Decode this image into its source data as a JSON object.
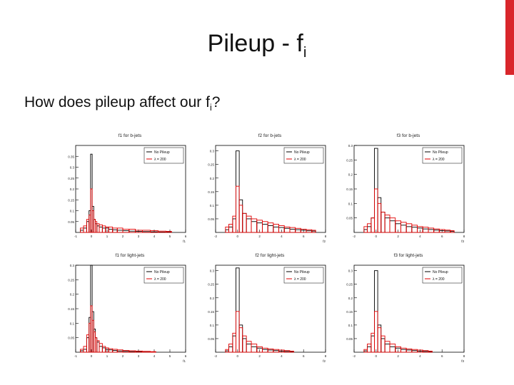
{
  "slide": {
    "title_main": "Pileup - f",
    "title_sub": "i",
    "question_main": "How does pileup affect our f",
    "question_sub": "i",
    "question_end": "?",
    "accent_color": "#d9262b"
  },
  "legend": {
    "no_pileup": "No Pileup",
    "pileup": "λ = 200"
  },
  "chart_data": [
    {
      "type": "histogram",
      "title": "f1 for b-jets",
      "xlabel": "f1",
      "xlim": [
        -1,
        6
      ],
      "ylim": [
        0,
        0.4
      ],
      "yticks": [
        "0.35",
        "0.3",
        "0.25",
        "0.2",
        "0.15",
        "0.1",
        "0.05"
      ],
      "ytick_values": [
        0.35,
        0.3,
        0.25,
        0.2,
        0.15,
        0.1,
        0.05
      ],
      "xticks": [
        "-1",
        "0",
        "1",
        "2",
        "3",
        "4",
        "5",
        "6"
      ],
      "series": [
        {
          "name": "No Pileup",
          "color": "#000000",
          "x": [
            -0.6,
            -0.4,
            -0.2,
            -0.1,
            0,
            0.1,
            0.2,
            0.3,
            0.4,
            0.6,
            0.8,
            1.0,
            1.2,
            1.5,
            1.8,
            2.2,
            2.6,
            3.0,
            3.5,
            4.0,
            4.5,
            5.0
          ],
          "values": [
            0.01,
            0.02,
            0.05,
            0.1,
            0.36,
            0.12,
            0.06,
            0.04,
            0.03,
            0.025,
            0.02,
            0.02,
            0.015,
            0.012,
            0.01,
            0.008,
            0.006,
            0.005,
            0.004,
            0.003,
            0.002,
            0.002
          ]
        },
        {
          "name": "λ = 200",
          "color": "#e00000",
          "x": [
            -0.6,
            -0.4,
            -0.2,
            -0.1,
            0,
            0.1,
            0.2,
            0.3,
            0.4,
            0.6,
            0.8,
            1.0,
            1.2,
            1.5,
            1.8,
            2.2,
            2.6,
            3.0,
            3.5,
            4.0,
            4.5,
            5.0
          ],
          "values": [
            0.02,
            0.03,
            0.06,
            0.08,
            0.2,
            0.1,
            0.06,
            0.05,
            0.04,
            0.035,
            0.03,
            0.025,
            0.025,
            0.02,
            0.02,
            0.015,
            0.015,
            0.01,
            0.01,
            0.008,
            0.006,
            0.005
          ]
        }
      ]
    },
    {
      "type": "histogram",
      "title": "f2 for b-jets",
      "xlabel": "f2",
      "xlim": [
        -2,
        8
      ],
      "ylim": [
        0,
        0.32
      ],
      "yticks": [
        "0.3",
        "0.25",
        "0.2",
        "0.15",
        "0.1",
        "0.05"
      ],
      "ytick_values": [
        0.3,
        0.25,
        0.2,
        0.15,
        0.1,
        0.05
      ],
      "xticks": [
        "-2",
        "0",
        "2",
        "4",
        "6",
        "8"
      ],
      "series": [
        {
          "name": "No Pileup",
          "color": "#000000",
          "x": [
            -1.0,
            -0.6,
            -0.3,
            0,
            0.3,
            0.6,
            1.0,
            1.5,
            2.0,
            2.5,
            3.0,
            3.5,
            4.0,
            4.5,
            5.0,
            5.5,
            6.0,
            6.5,
            7.0
          ],
          "values": [
            0.01,
            0.02,
            0.05,
            0.3,
            0.12,
            0.07,
            0.05,
            0.04,
            0.035,
            0.03,
            0.025,
            0.02,
            0.018,
            0.015,
            0.012,
            0.01,
            0.008,
            0.006,
            0.005
          ]
        },
        {
          "name": "λ = 200",
          "color": "#e00000",
          "x": [
            -1.0,
            -0.6,
            -0.3,
            0,
            0.3,
            0.6,
            1.0,
            1.5,
            2.0,
            2.5,
            3.0,
            3.5,
            4.0,
            4.5,
            5.0,
            5.5,
            6.0,
            6.5,
            7.0
          ],
          "values": [
            0.02,
            0.03,
            0.06,
            0.17,
            0.1,
            0.07,
            0.06,
            0.05,
            0.045,
            0.04,
            0.035,
            0.03,
            0.025,
            0.02,
            0.018,
            0.015,
            0.012,
            0.01,
            0.008
          ]
        }
      ]
    },
    {
      "type": "histogram",
      "title": "f3 for b-jets",
      "xlabel": "f3",
      "xlim": [
        -2,
        8
      ],
      "ylim": [
        0,
        0.3
      ],
      "yticks": [
        "0.3",
        "0.25",
        "0.2",
        "0.15",
        "0.1",
        "0.05"
      ],
      "ytick_values": [
        0.3,
        0.25,
        0.2,
        0.15,
        0.1,
        0.05
      ],
      "xticks": [
        "-2",
        "0",
        "2",
        "4",
        "6",
        "8"
      ],
      "series": [
        {
          "name": "No Pileup",
          "color": "#000000",
          "x": [
            -1.0,
            -0.6,
            -0.3,
            0,
            0.3,
            0.6,
            1.0,
            1.5,
            2.0,
            2.5,
            3.0,
            3.5,
            4.0,
            4.5,
            5.0,
            5.5,
            6.0,
            6.5,
            7.0
          ],
          "values": [
            0.01,
            0.02,
            0.05,
            0.29,
            0.12,
            0.07,
            0.05,
            0.04,
            0.03,
            0.025,
            0.02,
            0.018,
            0.015,
            0.012,
            0.01,
            0.008,
            0.006,
            0.005,
            0.004
          ]
        },
        {
          "name": "λ = 200",
          "color": "#e00000",
          "x": [
            -1.0,
            -0.6,
            -0.3,
            0,
            0.3,
            0.6,
            1.0,
            1.5,
            2.0,
            2.5,
            3.0,
            3.5,
            4.0,
            4.5,
            5.0,
            5.5,
            6.0,
            6.5,
            7.0
          ],
          "values": [
            0.02,
            0.03,
            0.05,
            0.15,
            0.1,
            0.07,
            0.06,
            0.05,
            0.04,
            0.035,
            0.03,
            0.025,
            0.02,
            0.018,
            0.015,
            0.012,
            0.01,
            0.008,
            0.006
          ]
        }
      ]
    },
    {
      "type": "histogram",
      "title": "f1 for light-jets",
      "xlabel": "f1",
      "xlim": [
        -1,
        6
      ],
      "ylim": [
        0,
        0.3
      ],
      "yticks": [
        "0.3",
        "0.25",
        "0.2",
        "0.15",
        "0.1",
        "0.05"
      ],
      "ytick_values": [
        0.3,
        0.25,
        0.2,
        0.15,
        0.1,
        0.05
      ],
      "xticks": [
        "-1",
        "0",
        "1",
        "2",
        "3",
        "4",
        "5",
        "6"
      ],
      "series": [
        {
          "name": "No Pileup",
          "color": "#000000",
          "x": [
            -0.6,
            -0.4,
            -0.2,
            -0.1,
            0,
            0.1,
            0.2,
            0.3,
            0.4,
            0.6,
            0.8,
            1.0,
            1.2,
            1.5,
            1.8,
            2.2,
            2.6,
            3.0,
            3.5,
            4.0
          ],
          "values": [
            0.005,
            0.01,
            0.05,
            0.12,
            0.3,
            0.14,
            0.08,
            0.05,
            0.035,
            0.02,
            0.015,
            0.01,
            0.008,
            0.006,
            0.004,
            0.003,
            0.002,
            0.002,
            0.001,
            0.001
          ]
        },
        {
          "name": "λ = 200",
          "color": "#e00000",
          "x": [
            -0.6,
            -0.4,
            -0.2,
            -0.1,
            0,
            0.1,
            0.2,
            0.3,
            0.4,
            0.6,
            0.8,
            1.0,
            1.2,
            1.5,
            1.8,
            2.2,
            2.6,
            3.0,
            3.5,
            4.0
          ],
          "values": [
            0.01,
            0.02,
            0.06,
            0.1,
            0.16,
            0.11,
            0.07,
            0.05,
            0.04,
            0.03,
            0.02,
            0.015,
            0.012,
            0.01,
            0.008,
            0.006,
            0.005,
            0.004,
            0.003,
            0.002
          ]
        }
      ]
    },
    {
      "type": "histogram",
      "title": "f2 for light-jets",
      "xlabel": "f2",
      "xlim": [
        -2,
        8
      ],
      "ylim": [
        0,
        0.32
      ],
      "yticks": [
        "0.3",
        "0.25",
        "0.2",
        "0.15",
        "0.1",
        "0.05"
      ],
      "ytick_values": [
        0.3,
        0.25,
        0.2,
        0.15,
        0.1,
        0.05
      ],
      "xticks": [
        "-2",
        "0",
        "2",
        "4",
        "6",
        "8"
      ],
      "series": [
        {
          "name": "No Pileup",
          "color": "#000000",
          "x": [
            -1.0,
            -0.6,
            -0.3,
            0,
            0.3,
            0.6,
            1.0,
            1.5,
            2.0,
            2.5,
            3.0,
            3.5,
            4.0,
            4.5,
            5.0
          ],
          "values": [
            0.005,
            0.02,
            0.06,
            0.31,
            0.1,
            0.05,
            0.03,
            0.02,
            0.015,
            0.01,
            0.008,
            0.006,
            0.004,
            0.003,
            0.002
          ]
        },
        {
          "name": "λ = 200",
          "color": "#e00000",
          "x": [
            -1.0,
            -0.6,
            -0.3,
            0,
            0.3,
            0.6,
            1.0,
            1.5,
            2.0,
            2.5,
            3.0,
            3.5,
            4.0,
            4.5,
            5.0
          ],
          "values": [
            0.01,
            0.03,
            0.07,
            0.15,
            0.09,
            0.06,
            0.04,
            0.03,
            0.02,
            0.015,
            0.012,
            0.01,
            0.008,
            0.006,
            0.004
          ]
        }
      ]
    },
    {
      "type": "histogram",
      "title": "f3 for light-jets",
      "xlabel": "f3",
      "xlim": [
        -2,
        8
      ],
      "ylim": [
        0,
        0.32
      ],
      "yticks": [
        "0.3",
        "0.25",
        "0.2",
        "0.15",
        "0.1",
        "0.05"
      ],
      "ytick_values": [
        0.3,
        0.25,
        0.2,
        0.15,
        0.1,
        0.05
      ],
      "xticks": [
        "-2",
        "0",
        "2",
        "4",
        "6",
        "8"
      ],
      "series": [
        {
          "name": "No Pileup",
          "color": "#000000",
          "x": [
            -1.0,
            -0.6,
            -0.3,
            0,
            0.3,
            0.6,
            1.0,
            1.5,
            2.0,
            2.5,
            3.0,
            3.5,
            4.0,
            4.5,
            5.0
          ],
          "values": [
            0.005,
            0.02,
            0.06,
            0.3,
            0.1,
            0.05,
            0.03,
            0.02,
            0.015,
            0.01,
            0.008,
            0.006,
            0.004,
            0.003,
            0.002
          ]
        },
        {
          "name": "λ = 200",
          "color": "#e00000",
          "x": [
            -1.0,
            -0.6,
            -0.3,
            0,
            0.3,
            0.6,
            1.0,
            1.5,
            2.0,
            2.5,
            3.0,
            3.5,
            4.0,
            4.5,
            5.0
          ],
          "values": [
            0.01,
            0.03,
            0.07,
            0.15,
            0.09,
            0.06,
            0.04,
            0.03,
            0.02,
            0.015,
            0.012,
            0.01,
            0.008,
            0.006,
            0.004
          ]
        }
      ]
    }
  ]
}
